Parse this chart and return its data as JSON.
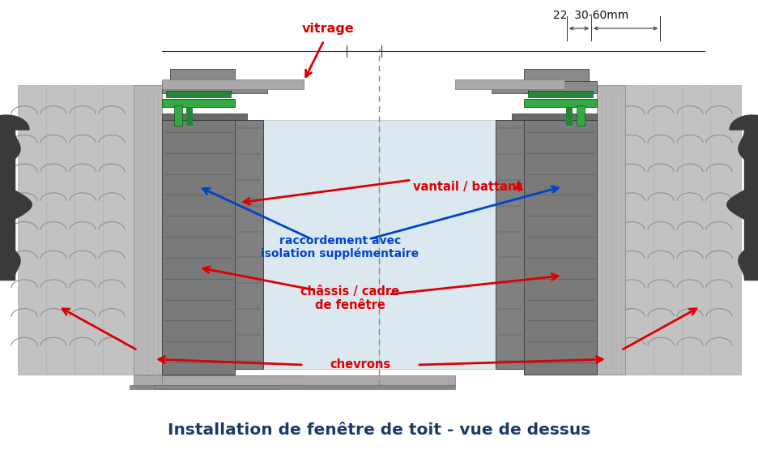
{
  "title": "Installation de fenêtre de toit - vue de dessus",
  "title_color": "#1a3a6b",
  "title_fontsize": 14.5,
  "bg_color": "#ffffff",
  "label_vitrage": "vitrage",
  "label_vantail": "vantail / battant",
  "label_raccordement": "raccordement avec\nisolation supplémentaire",
  "label_chassis": "châssis / cadre\nde fenêtre",
  "label_chevrons": "chevrons",
  "label_dim": "22  30-60mm",
  "red": "#dd0000",
  "blue": "#0044cc",
  "dark": "#222222",
  "green": "#33aa44",
  "c_insul": "#c2c2c2",
  "c_wood": "#b0b0b0",
  "c_frame": "#888888",
  "c_frame_dark": "#555555",
  "c_glass": "#dce8f0",
  "c_seal": "#444444",
  "c_beam": "#999999",
  "c_beam_dark": "#666666",
  "c_rubber": "#3a3a3a"
}
